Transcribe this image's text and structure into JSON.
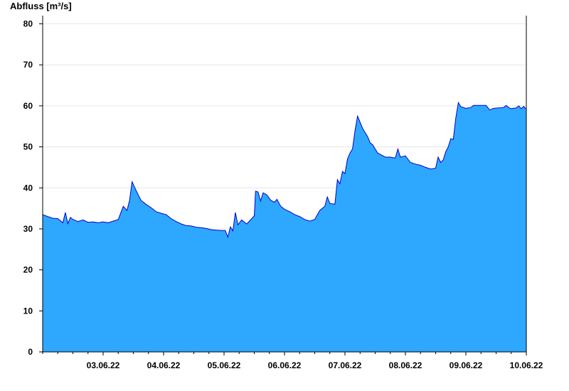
{
  "chart_data": {
    "type": "area",
    "ylabel": "Abfluss [m³/s]",
    "ylim": [
      0,
      82
    ],
    "yticks": [
      0,
      10,
      20,
      30,
      40,
      50,
      60,
      70,
      80
    ],
    "x_start": "02.06.22 12:00",
    "x_end": "10.06.22 12:00",
    "day_labels": [
      "03.06.22",
      "04.06.22",
      "05.06.22",
      "06.06.22",
      "07.06.22",
      "08.06.22",
      "09.06.22",
      "10.06.22"
    ],
    "grid": true,
    "colors": {
      "fill": "#2ea8ff",
      "line": "#0000cc",
      "grid": "#e6e6e6",
      "axis": "#000000"
    },
    "series": [
      {
        "points": [
          [
            "02.06.22 12:00",
            33.5
          ],
          [
            "02.06.22 14:00",
            33.0
          ],
          [
            "02.06.22 16:00",
            32.6
          ],
          [
            "02.06.22 18:00",
            32.5
          ],
          [
            "02.06.22 20:00",
            31.5
          ],
          [
            "02.06.22 21:00",
            34.0
          ],
          [
            "02.06.22 22:00",
            31.3
          ],
          [
            "02.06.22 23:00",
            32.8
          ],
          [
            "03.06.22 00:00",
            32.3
          ],
          [
            "03.06.22 02:00",
            31.8
          ],
          [
            "03.06.22 04:00",
            32.2
          ],
          [
            "03.06.22 06:00",
            31.6
          ],
          [
            "03.06.22 08:00",
            31.7
          ],
          [
            "03.06.22 10:00",
            31.5
          ],
          [
            "03.06.22 12:00",
            31.7
          ],
          [
            "03.06.22 14:00",
            31.5
          ],
          [
            "03.06.22 16:00",
            31.9
          ],
          [
            "03.06.22 18:00",
            32.3
          ],
          [
            "03.06.22 20:00",
            35.5
          ],
          [
            "03.06.22 21:30",
            34.5
          ],
          [
            "03.06.22 22:30",
            37.0
          ],
          [
            "03.06.22 23:30",
            41.5
          ],
          [
            "04.06.22 01:00",
            39.5
          ],
          [
            "04.06.22 03:00",
            37.0
          ],
          [
            "04.06.22 05:00",
            36.0
          ],
          [
            "04.06.22 07:00",
            35.2
          ],
          [
            "04.06.22 09:00",
            34.2
          ],
          [
            "04.06.22 11:00",
            33.8
          ],
          [
            "04.06.22 13:00",
            33.5
          ],
          [
            "04.06.22 15:00",
            32.5
          ],
          [
            "04.06.22 17:00",
            31.8
          ],
          [
            "04.06.22 19:00",
            31.2
          ],
          [
            "04.06.22 21:00",
            30.8
          ],
          [
            "04.06.22 23:00",
            30.7
          ],
          [
            "05.06.22 01:00",
            30.4
          ],
          [
            "05.06.22 03:00",
            30.3
          ],
          [
            "05.06.22 05:00",
            30.1
          ],
          [
            "05.06.22 07:00",
            29.8
          ],
          [
            "05.06.22 09:00",
            29.7
          ],
          [
            "05.06.22 11:00",
            29.6
          ],
          [
            "05.06.22 12:30",
            29.6
          ],
          [
            "05.06.22 13:30",
            28.0
          ],
          [
            "05.06.22 14:30",
            30.5
          ],
          [
            "05.06.22 15:30",
            29.5
          ],
          [
            "05.06.22 16:30",
            34.0
          ],
          [
            "05.06.22 17:30",
            31.0
          ],
          [
            "05.06.22 19:00",
            32.2
          ],
          [
            "05.06.22 21:00",
            31.2
          ],
          [
            "05.06.22 23:00",
            32.5
          ],
          [
            "06.06.22 00:00",
            33.2
          ],
          [
            "06.06.22 00:30",
            39.2
          ],
          [
            "06.06.22 01:30",
            39.0
          ],
          [
            "06.06.22 02:30",
            36.8
          ],
          [
            "06.06.22 03:30",
            38.8
          ],
          [
            "06.06.22 05:00",
            38.3
          ],
          [
            "06.06.22 06:30",
            37.0
          ],
          [
            "06.06.22 08:00",
            36.5
          ],
          [
            "06.06.22 09:00",
            37.2
          ],
          [
            "06.06.22 10:30",
            35.5
          ],
          [
            "06.06.22 12:00",
            34.8
          ],
          [
            "06.06.22 14:00",
            34.2
          ],
          [
            "06.06.22 16:00",
            33.5
          ],
          [
            "06.06.22 18:00",
            33.0
          ],
          [
            "06.06.22 20:00",
            32.3
          ],
          [
            "06.06.22 22:00",
            31.9
          ],
          [
            "07.06.22 00:00",
            32.3
          ],
          [
            "07.06.22 02:00",
            34.5
          ],
          [
            "07.06.22 04:00",
            35.5
          ],
          [
            "07.06.22 05:00",
            37.8
          ],
          [
            "07.06.22 06:00",
            36.2
          ],
          [
            "07.06.22 08:00",
            36.0
          ],
          [
            "07.06.22 09:00",
            42.0
          ],
          [
            "07.06.22 10:00",
            41.0
          ],
          [
            "07.06.22 11:00",
            44.0
          ],
          [
            "07.06.22 12:00",
            43.5
          ],
          [
            "07.06.22 13:00",
            47.0
          ],
          [
            "07.06.22 14:00",
            48.5
          ],
          [
            "07.06.22 15:00",
            49.5
          ],
          [
            "07.06.22 16:00",
            54.0
          ],
          [
            "07.06.22 17:00",
            57.5
          ],
          [
            "07.06.22 18:00",
            56.0
          ],
          [
            "07.06.22 19:00",
            54.5
          ],
          [
            "07.06.22 20:00",
            53.5
          ],
          [
            "07.06.22 21:00",
            52.5
          ],
          [
            "07.06.22 22:00",
            51.0
          ],
          [
            "07.06.22 23:00",
            50.5
          ],
          [
            "08.06.22 00:00",
            49.5
          ],
          [
            "08.06.22 01:00",
            48.5
          ],
          [
            "08.06.22 02:30",
            48.0
          ],
          [
            "08.06.22 04:00",
            47.5
          ],
          [
            "08.06.22 06:00",
            47.5
          ],
          [
            "08.06.22 08:00",
            47.3
          ],
          [
            "08.06.22 09:00",
            49.5
          ],
          [
            "08.06.22 10:00",
            47.5
          ],
          [
            "08.06.22 12:00",
            47.8
          ],
          [
            "08.06.22 14:00",
            46.2
          ],
          [
            "08.06.22 16:00",
            45.8
          ],
          [
            "08.06.22 18:00",
            45.5
          ],
          [
            "08.06.22 20:00",
            45.0
          ],
          [
            "08.06.22 22:00",
            44.6
          ],
          [
            "09.06.22 00:00",
            44.8
          ],
          [
            "09.06.22 01:00",
            47.5
          ],
          [
            "09.06.22 02:00",
            46.2
          ],
          [
            "09.06.22 03:00",
            46.8
          ],
          [
            "09.06.22 04:00",
            48.8
          ],
          [
            "09.06.22 05:00",
            50.0
          ],
          [
            "09.06.22 06:00",
            52.0
          ],
          [
            "09.06.22 07:00",
            51.8
          ],
          [
            "09.06.22 08:00",
            57.0
          ],
          [
            "09.06.22 09:00",
            60.8
          ],
          [
            "09.06.22 10:00",
            59.8
          ],
          [
            "09.06.22 12:00",
            59.4
          ],
          [
            "09.06.22 14:00",
            59.6
          ],
          [
            "09.06.22 15:00",
            60.1
          ],
          [
            "09.06.22 20:00",
            60.1
          ],
          [
            "09.06.22 21:30",
            59.0
          ],
          [
            "09.06.22 23:00",
            59.4
          ],
          [
            "10.06.22 01:00",
            59.5
          ],
          [
            "10.06.22 03:00",
            59.6
          ],
          [
            "10.06.22 04:00",
            60.1
          ],
          [
            "10.06.22 05:00",
            59.6
          ],
          [
            "10.06.22 06:00",
            59.3
          ],
          [
            "10.06.22 08:00",
            59.5
          ],
          [
            "10.06.22 09:00",
            60.0
          ],
          [
            "10.06.22 10:00",
            59.3
          ],
          [
            "10.06.22 11:00",
            59.9
          ],
          [
            "10.06.22 11:30",
            59.4
          ],
          [
            "10.06.22 12:00",
            59.5
          ]
        ]
      }
    ]
  }
}
